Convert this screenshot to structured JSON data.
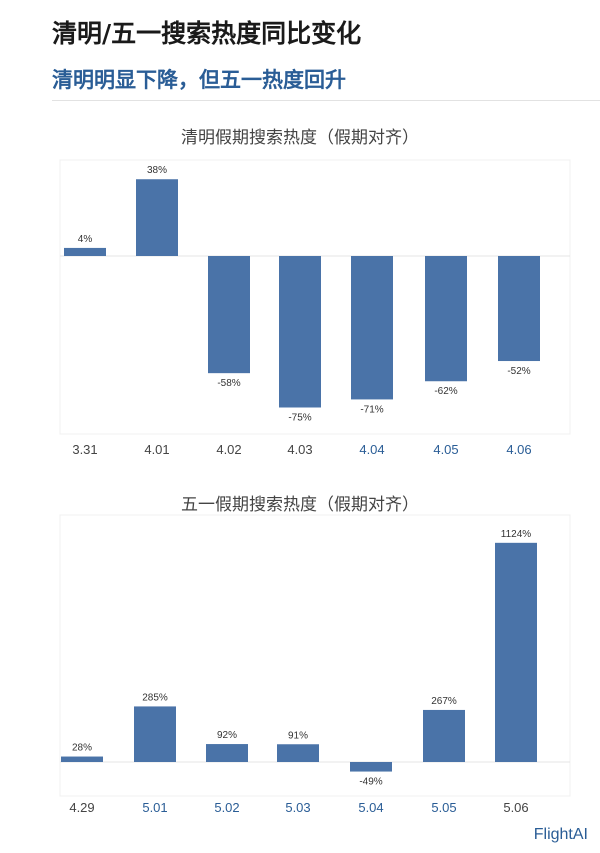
{
  "header": {
    "title": "清明/五一搜索热度同比变化",
    "subtitle": "清明明显下降，但五一热度回升"
  },
  "brand": "FlightAI",
  "colors": {
    "bar": "#4a73a8",
    "highlight_tick": "#2a5d96",
    "default_tick": "#444444"
  },
  "chart_data": [
    {
      "type": "bar",
      "title": "清明假期搜索热度（假期对齐）",
      "categories": [
        "3.31",
        "4.01",
        "4.02",
        "4.03",
        "4.04",
        "4.05",
        "4.06"
      ],
      "values": [
        4,
        38,
        -58,
        -75,
        -71,
        -62,
        -52
      ],
      "data_labels": [
        "4%",
        "38%",
        "-58%",
        "-75%",
        "-71%",
        "-62%",
        "-52%"
      ],
      "highlighted_categories": [
        "4.04",
        "4.05",
        "4.06"
      ],
      "unit": "%",
      "grid": false
    },
    {
      "type": "bar",
      "title": "五一假期搜索热度（假期对齐）",
      "categories": [
        "4.29",
        "5.01",
        "5.02",
        "5.03",
        "5.04",
        "5.05",
        "5.06"
      ],
      "values": [
        28,
        285,
        92,
        91,
        -49,
        267,
        1124
      ],
      "data_labels": [
        "28%",
        "285%",
        "92%",
        "91%",
        "-49%",
        "267%",
        "1124%"
      ],
      "highlighted_categories": [
        "5.01",
        "5.02",
        "5.03",
        "5.04",
        "5.05"
      ],
      "unit": "%",
      "grid": false
    }
  ]
}
